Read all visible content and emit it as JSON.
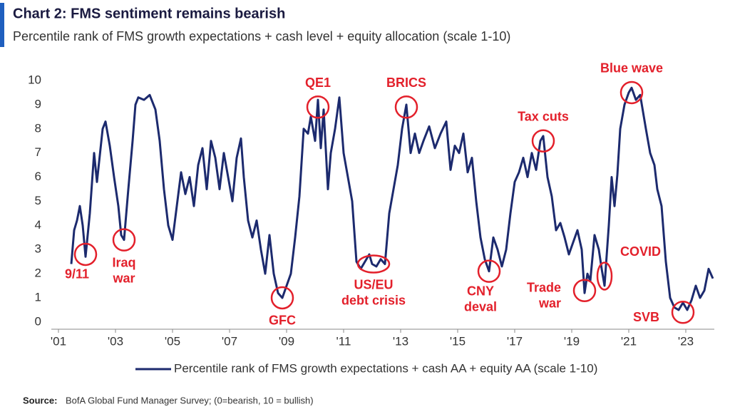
{
  "chart_data": {
    "type": "line",
    "title": "Chart 2: FMS sentiment remains bearish",
    "subtitle": "Percentile rank of FMS growth expectations + cash level + equity allocation (scale 1-10)",
    "source": {
      "label": "Source:",
      "text": "BofA Global Fund Manager Survey; (0=bearish, 10 = bullish)"
    },
    "xlim": [
      2000.75,
      2024.0
    ],
    "xticks": [
      {
        "value": 2001,
        "label": "'01"
      },
      {
        "value": 2003,
        "label": "'03"
      },
      {
        "value": 2005,
        "label": "'05"
      },
      {
        "value": 2007,
        "label": "'07"
      },
      {
        "value": 2009,
        "label": "'09"
      },
      {
        "value": 2011,
        "label": "'11"
      },
      {
        "value": 2013,
        "label": "'13"
      },
      {
        "value": 2015,
        "label": "'15"
      },
      {
        "value": 2017,
        "label": "'17"
      },
      {
        "value": 2019,
        "label": "'19"
      },
      {
        "value": 2021,
        "label": "'21"
      },
      {
        "value": 2023,
        "label": "'23"
      }
    ],
    "ylim": [
      -0.3,
      10
    ],
    "yticks": [
      0,
      1,
      2,
      3,
      4,
      5,
      6,
      7,
      8,
      9,
      10
    ],
    "grid": false,
    "legend": "bottom",
    "x": [
      2001.45,
      2001.55,
      2001.65,
      2001.75,
      2001.85,
      2001.95,
      2002.1,
      2002.25,
      2002.35,
      2002.45,
      2002.55,
      2002.65,
      2002.8,
      2002.95,
      2003.1,
      2003.2,
      2003.3,
      2003.45,
      2003.6,
      2003.7,
      2003.8,
      2004.0,
      2004.2,
      2004.4,
      2004.55,
      2004.7,
      2004.85,
      2005.0,
      2005.15,
      2005.3,
      2005.45,
      2005.6,
      2005.75,
      2005.9,
      2006.05,
      2006.2,
      2006.35,
      2006.5,
      2006.65,
      2006.8,
      2006.95,
      2007.1,
      2007.25,
      2007.4,
      2007.5,
      2007.65,
      2007.8,
      2007.95,
      2008.1,
      2008.25,
      2008.4,
      2008.55,
      2008.7,
      2008.85,
      2009.0,
      2009.15,
      2009.3,
      2009.45,
      2009.6,
      2009.75,
      2009.85,
      2010.0,
      2010.1,
      2010.2,
      2010.3,
      2010.45,
      2010.55,
      2010.7,
      2010.85,
      2011.0,
      2011.15,
      2011.3,
      2011.45,
      2011.6,
      2011.75,
      2011.9,
      2012.0,
      2012.15,
      2012.3,
      2012.45,
      2012.6,
      2012.75,
      2012.9,
      2013.05,
      2013.2,
      2013.35,
      2013.5,
      2013.65,
      2013.8,
      2014.0,
      2014.2,
      2014.4,
      2014.6,
      2014.75,
      2014.9,
      2015.05,
      2015.2,
      2015.35,
      2015.5,
      2015.65,
      2015.8,
      2015.95,
      2016.1,
      2016.25,
      2016.4,
      2016.55,
      2016.7,
      2016.85,
      2017.0,
      2017.15,
      2017.3,
      2017.45,
      2017.6,
      2017.75,
      2017.9,
      2018.0,
      2018.15,
      2018.3,
      2018.45,
      2018.6,
      2018.75,
      2018.9,
      2019.05,
      2019.2,
      2019.35,
      2019.45,
      2019.55,
      2019.65,
      2019.8,
      2019.95,
      2020.05,
      2020.15,
      2020.3,
      2020.4,
      2020.5,
      2020.6,
      2020.7,
      2020.85,
      2021.0,
      2021.1,
      2021.25,
      2021.4,
      2021.6,
      2021.75,
      2021.9,
      2022.0,
      2022.15,
      2022.3,
      2022.45,
      2022.6,
      2022.75,
      2022.9,
      2023.05,
      2023.2,
      2023.35,
      2023.5,
      2023.65,
      2023.8,
      2023.95
    ],
    "series": [
      {
        "name": "Percentile rank of FMS growth expectations + cash AA + equity AA (scale 1-10)",
        "color": "#1c2a6e",
        "values": [
          2.4,
          3.8,
          4.2,
          4.8,
          4.0,
          2.7,
          4.5,
          7.0,
          5.8,
          6.9,
          8.0,
          8.3,
          7.3,
          6.0,
          4.8,
          3.6,
          3.4,
          5.5,
          7.5,
          9.0,
          9.3,
          9.2,
          9.4,
          8.8,
          7.5,
          5.5,
          4.0,
          3.4,
          4.8,
          6.2,
          5.3,
          6.0,
          4.8,
          6.5,
          7.2,
          5.5,
          7.5,
          6.8,
          5.5,
          7.0,
          6.0,
          5.0,
          6.8,
          7.6,
          6.0,
          4.2,
          3.5,
          4.2,
          3.0,
          2.0,
          3.6,
          2.0,
          1.2,
          1.0,
          1.5,
          2.0,
          3.5,
          5.2,
          8.0,
          7.8,
          8.5,
          7.5,
          9.2,
          7.2,
          8.8,
          5.5,
          7.0,
          8.0,
          9.3,
          7.0,
          6.0,
          5.0,
          2.5,
          2.2,
          2.5,
          2.8,
          2.4,
          2.3,
          2.6,
          2.4,
          4.5,
          5.5,
          6.5,
          8.0,
          9.0,
          7.0,
          7.8,
          7.0,
          7.5,
          8.1,
          7.2,
          7.8,
          8.3,
          6.3,
          7.3,
          7.0,
          7.8,
          6.2,
          6.8,
          5.0,
          3.5,
          2.6,
          2.1,
          3.5,
          3.0,
          2.3,
          3.0,
          4.5,
          5.8,
          6.2,
          6.8,
          6.0,
          7.0,
          6.3,
          7.5,
          7.7,
          6.0,
          5.2,
          3.8,
          4.1,
          3.5,
          2.8,
          3.3,
          3.8,
          3.0,
          1.2,
          2.0,
          1.7,
          3.6,
          3.0,
          2.2,
          1.5,
          4.0,
          6.0,
          4.8,
          6.1,
          8.0,
          9.0,
          9.5,
          9.7,
          9.2,
          9.4,
          8.0,
          7.0,
          6.5,
          5.5,
          4.8,
          2.5,
          1.0,
          0.6,
          0.5,
          0.8,
          0.5,
          0.9,
          1.5,
          1.0,
          1.3,
          2.2,
          1.8
        ]
      }
    ],
    "annotations": [
      {
        "text": [
          "9/11"
        ],
        "x": 2001.95,
        "y": 2.8,
        "position": "below-left",
        "shape": "round"
      },
      {
        "text": [
          "Iraq",
          "war"
        ],
        "x": 2003.3,
        "y": 3.4,
        "position": "below",
        "shape": "round"
      },
      {
        "text": [
          "GFC"
        ],
        "x": 2008.85,
        "y": 1.0,
        "position": "below",
        "shape": "round"
      },
      {
        "text": [
          "QE1"
        ],
        "x": 2010.1,
        "y": 8.9,
        "position": "above",
        "shape": "round"
      },
      {
        "text": [
          "US/EU",
          "debt crisis"
        ],
        "x": 2012.05,
        "y": 2.4,
        "position": "below",
        "shape": "wide"
      },
      {
        "text": [
          "BRICS"
        ],
        "x": 2013.2,
        "y": 8.9,
        "position": "above",
        "shape": "round"
      },
      {
        "text": [
          "CNY",
          "deval"
        ],
        "x": 2016.1,
        "y": 2.1,
        "position": "below-left",
        "shape": "round"
      },
      {
        "text": [
          "Tax cuts"
        ],
        "x": 2018.0,
        "y": 7.5,
        "position": "above",
        "shape": "round"
      },
      {
        "text": [
          "Trade",
          "war"
        ],
        "x": 2019.45,
        "y": 1.3,
        "position": "left",
        "shape": "round"
      },
      {
        "text": [
          "COVID"
        ],
        "x": 2020.15,
        "y": 1.9,
        "position": "above-right",
        "shape": "tall"
      },
      {
        "text": [
          "Blue wave"
        ],
        "x": 2021.1,
        "y": 9.5,
        "position": "above",
        "shape": "round"
      },
      {
        "text": [
          "SVB"
        ],
        "x": 2022.9,
        "y": 0.4,
        "position": "left",
        "shape": "round"
      }
    ]
  }
}
